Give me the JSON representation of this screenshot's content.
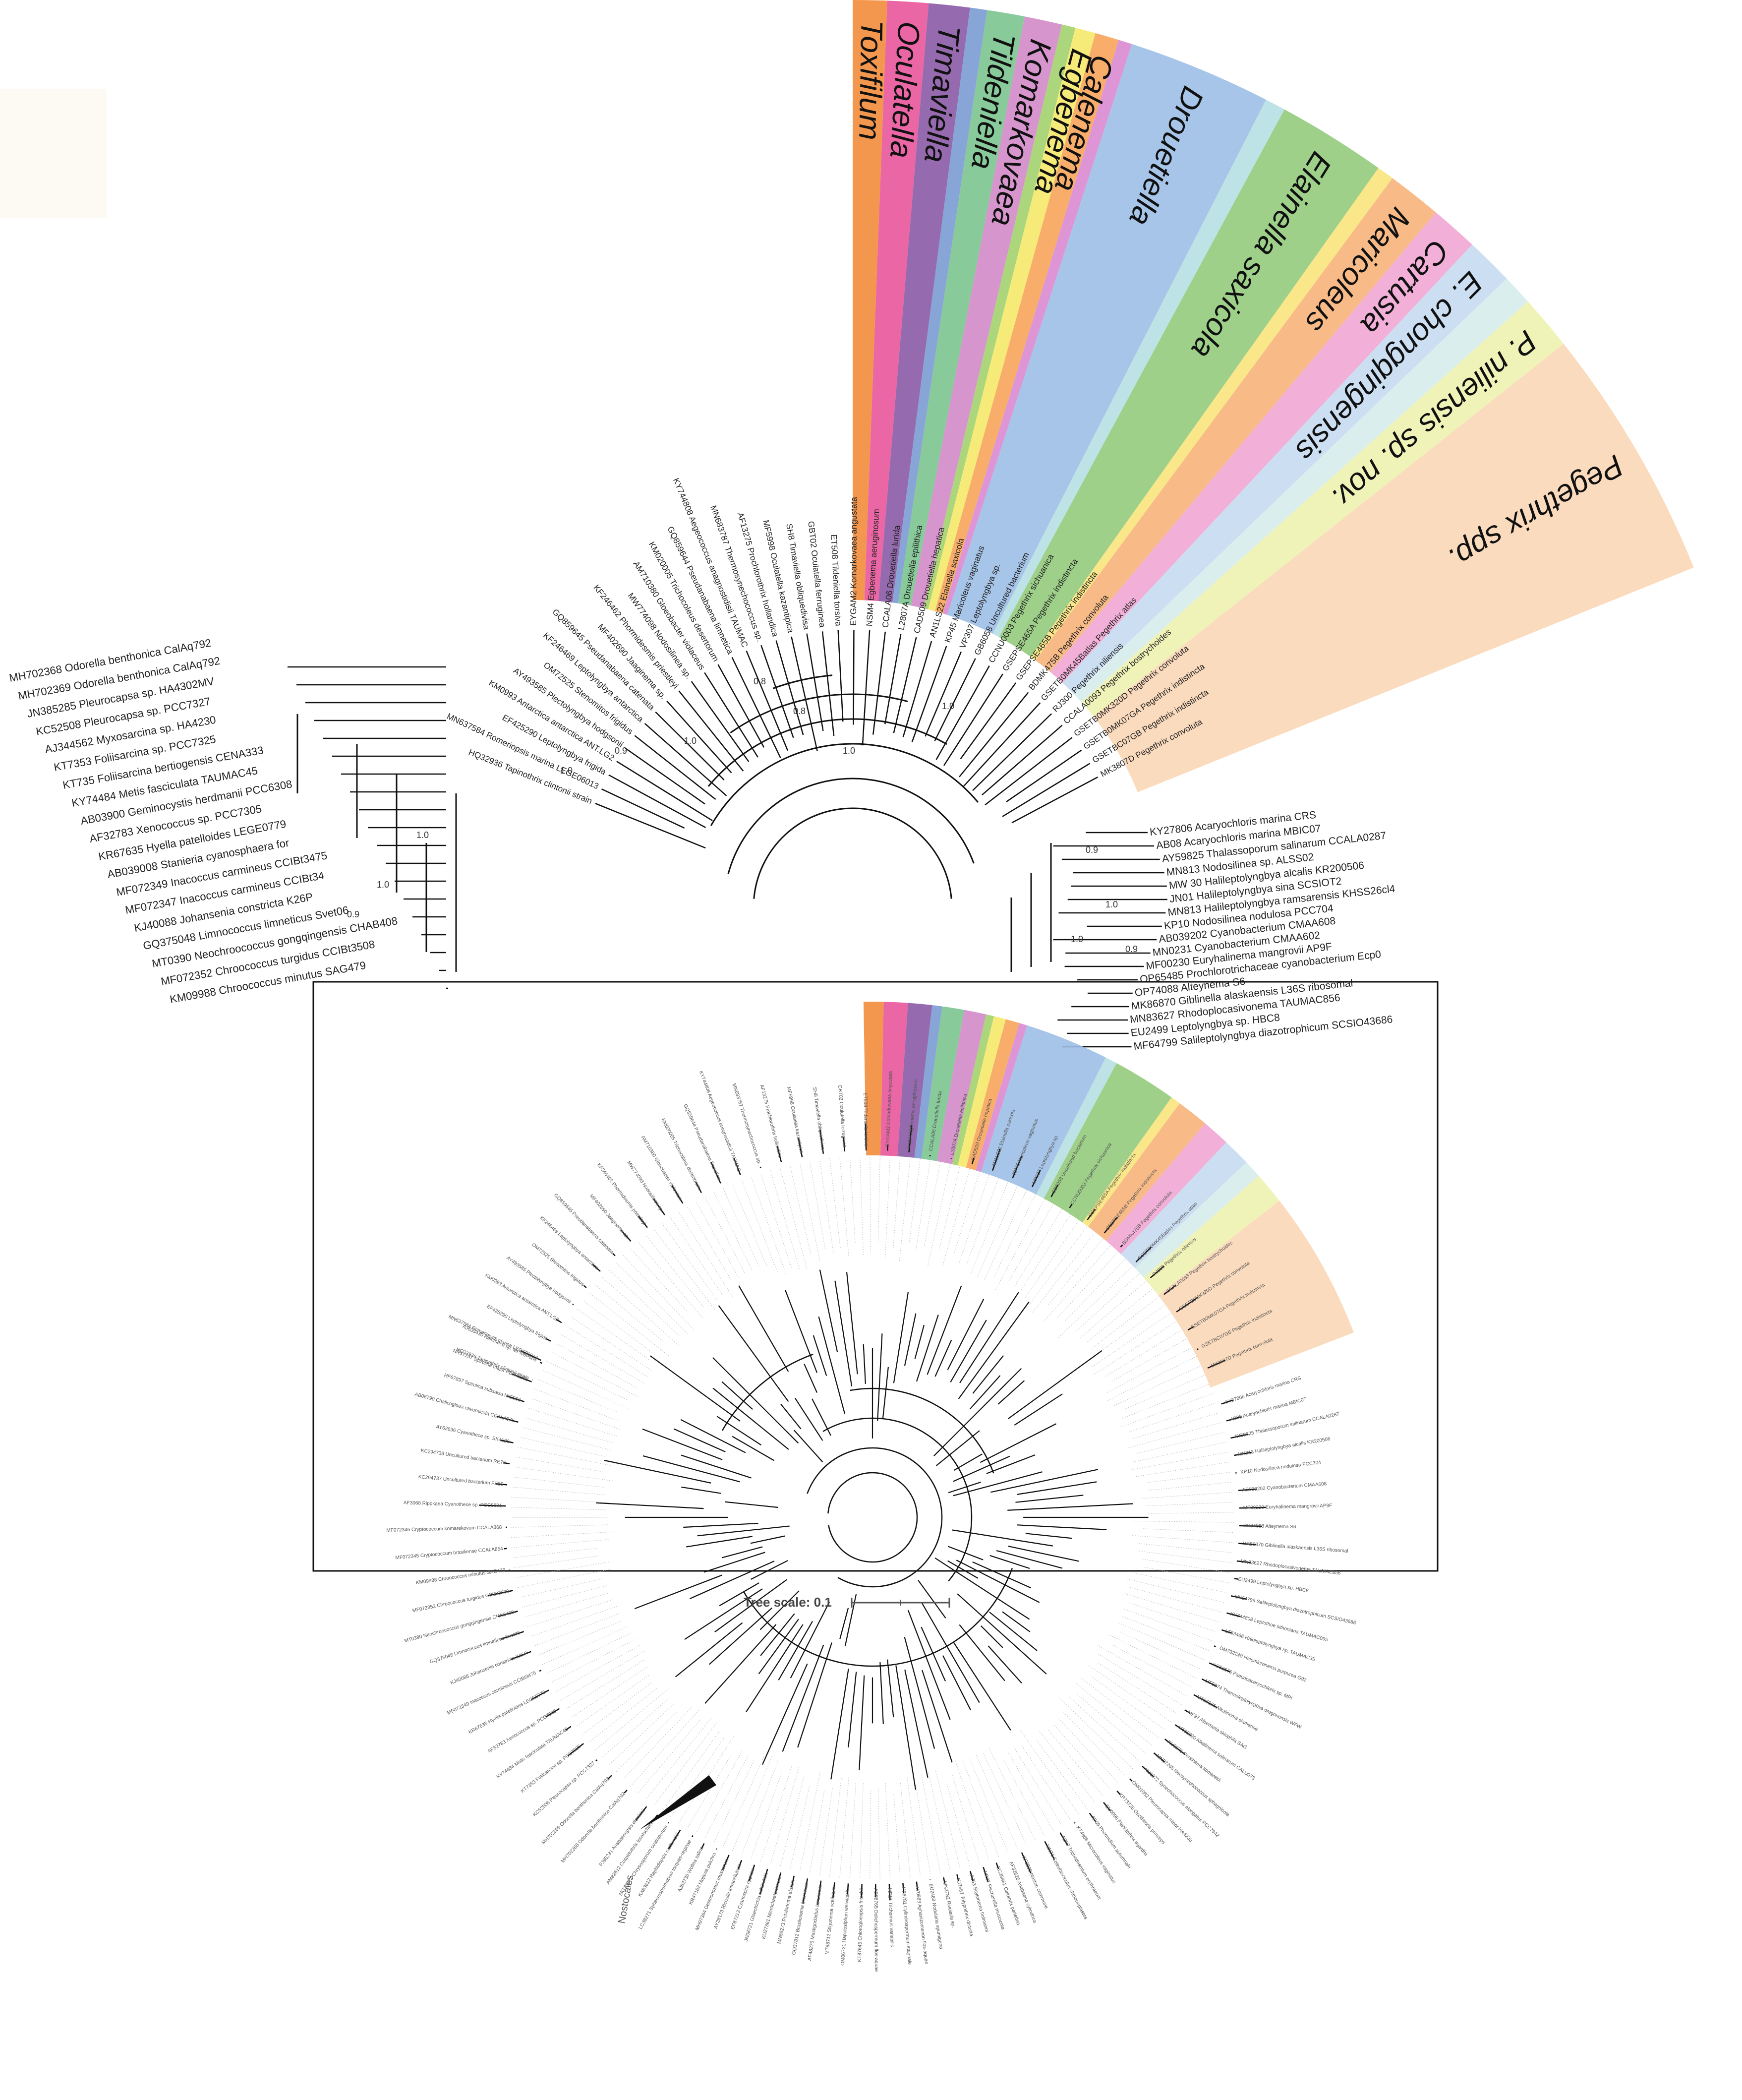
{
  "clades": [
    {
      "name": "Toxifilum",
      "color": "#f28c3c"
    },
    {
      "name": "Oculatella",
      "color": "#e8559a"
    },
    {
      "name": "Timaviella",
      "color": "#8b5aa5"
    },
    {
      "name": "",
      "color": "#7a9bd2"
    },
    {
      "name": "Tildeniella",
      "color": "#7cc48f"
    },
    {
      "name": "Komarkovaea",
      "color": "#d18ac7"
    },
    {
      "name": "",
      "color": "#a3d16e"
    },
    {
      "name": "Egbenema",
      "color": "#f5e96a"
    },
    {
      "name": "Calenema",
      "color": "#f7a55a"
    },
    {
      "name": "",
      "color": "#d98ad1"
    },
    {
      "name": "Drouetiella",
      "color": "#9dbfe6"
    },
    {
      "name": "",
      "color": "#b7e0e3"
    },
    {
      "name": "Elainella saxicola",
      "color": "#93cb7c"
    },
    {
      "name": "",
      "color": "#f8e47c"
    },
    {
      "name": "Maricoleus",
      "color": "#f7b47a"
    },
    {
      "name": "Cartusia",
      "color": "#f1a7d4"
    },
    {
      "name": "E. chongqingensis",
      "color": "#c6dcf1"
    },
    {
      "name": "",
      "color": "#d6ecec"
    },
    {
      "name": "P. niliensis sp. nov.",
      "color": "#eef2b0"
    },
    {
      "name": "Pegethrix spp.",
      "color": "#fbd7b6"
    }
  ],
  "labels": {
    "upper_left": [
      "MH702368 Odorella benthonica CalAq792",
      "MH702369 Odorella benthonica CalAq792",
      "JN385285 Pleurocapsa sp. HA4302MV",
      "KC52508 Pleurocapsa sp. PCC7327",
      "AJ344562 Myxosarcina sp. HA4230",
      "KT7353 Foliisarcina sp. PCC7325",
      "KT735 Foliisarcina bertiogensis CENA333",
      "KY74484 Metis fasciculata TAUMAC45",
      "AB03900 Geminocystis herdmanii PCC6308",
      "AF32783 Xenococcus sp. PCC7305",
      "KR67635 Hyella patelloides LEGE0779",
      "AB039008 Stanieria cyanosphaera for",
      "MF072349 Inacoccus carmineus CCIBt3475",
      "MF072347 Inacoccus carmineus CCIBt34",
      "KJ40088 Johansenia constricta K26P",
      "GQ375048 Limnococcus limneticus Svet06",
      "MT0390 Neochroococcus gongqingensis CHAB408",
      "MF072352 Chroococcus turgidus CCIBt3508",
      "KM09988 Chroococcus minutus SAG479"
    ],
    "upper_right": [
      "KY27806 Acaryochloris marina CRS",
      "AB08 Acaryochloris marina MBIC07",
      "AY59825 Thalassoporum salinarum CCALA0287",
      "MN813 Nodosilinea sp. ALSS02",
      "MW 30 Halileptolyngbya alcalis KR200506",
      "JN01 Halileptolyngbya sina SCSIOT2",
      "MN813 Halileptolyngbya ramsarensis KHSS26cl4",
      "KP10 Nodosilinea nodulosa PCC704",
      "AB039202 Cyanobacterium CMAA608",
      "MN0231 Cyanobacterium CMAA602",
      "MF00230 Euryhalinema mangrovii AP9F",
      "OP65485 Prochlorotrichaceae cyanobacterium Ecp0",
      "OP74088 Alteynema S6",
      "MK86870 Giblinella alaskaensis L36S ribosomal",
      "MN83627 Rhodoplocasivonema TAUMAC856",
      "EU2499 Leptolyngbya sp. HBC8",
      "MF64799 Salileptolyngbya diazotrophicum SCSIO43686"
    ],
    "upper_top": [
      "HQ32936 Tapinothrix clintonii strain",
      "MN637584 Romeriopsis marina LEGE06013",
      "EF425290 Leptolyngbya frigida",
      "KM0993 Antarctica antarctica ANT.LG2",
      "AY493585 Plectolyngbya hodgsonii",
      "OM72525 Stenomitos frigidus",
      "KF246469 Leptolyngbya antarctica",
      "GQ859645 Pseudanabaena catenata",
      "MF402690 Jaaginema sp.",
      "KF246462 Phormidesmis priestleyi",
      "MW774098 Nodosilinea sp.",
      "AM710380 Gloeobacter violaceus",
      "KM020005 Trichocoleus desertorum",
      "GQ859644 Pseudanabaena limnetica",
      "KY744808 Aegeococcus anagnostidisii TAUMAC",
      "MN683787 Thermosynechococcus sp.",
      "AF13275 Prochlorothrix hollandica",
      "MF5998 Oculatella kazantipica",
      "SH8 Timaviella obliquedivisa",
      "GBT02 Oculatella ferruginea",
      "ET508 Tildeniella torsiva",
      "EYGAM2 Komarkovaea angustata",
      "NSM4 Egbenema aeruginosum",
      "CCALA06 Drouetiella lurida",
      "L2807A Drouetiella epilithica",
      "CAD509 Drouetiella hepatica",
      "AN1LS22 Elainella saxicola",
      "KP45 Maricoleus vaginatus",
      "VP307 Leptolyngbya sp.",
      "GB6058 Uncultured bacterium",
      "CCNU0003 Pegethrix sichuanica",
      "GSEPSE465A Pegethrix indistincta",
      "GSEPSE465B Pegethrix indistincta",
      "BDMK475B Pegethrix convoluta",
      "GSETB0MK45Batlas Pegethrix atlas",
      "RJ300 Pegethrix niliensis",
      "CCALA0093 Pegethrix bostrychoides",
      "GSETB0MK320D Pegethrix convoluta",
      "GSETB0MK07GA Pegethrix indistincta",
      "GSETBC07GB Pegethrix indistincta",
      "MK3807D Pegethrix convoluta"
    ],
    "lower_left": [
      "MH702368 Odorella benthonica CalAq792",
      "MH702369 Odorella benthonica CalAq792",
      "KC52508 Pleurocapsa sp. PCC7327",
      "KT7353 Foliisarcina sp. PCC7325",
      "KY74484 Metis fasciculata TAUMAC45",
      "AF32783 Xenococcus sp. PCC7305",
      "KR67635 Hyella patelloides LEGE0779",
      "MF072349 Inacoccus carmineus CCIBt3475",
      "KJ40088 Johansenia constricta K26P",
      "GQ375048 Limnococcus limneticus Svet06",
      "MT0390 Neochroococcus gongqingensis CHAB408",
      "MF072352 Chroococcus turgidus CCIBt3508",
      "KM09988 Chroococcus minutus SAG479",
      "MF072345 Cryptococcum brasiliense CCALA854",
      "MF072346 Cryptococcum komarekovum CCALA868",
      "AF3068 Rippkaea Cyanothece sp. PCC8801",
      "KC294737 Uncultured bacterium FE35",
      "KC294738 Uncultured bacterium RE76",
      "AY62636 Cyanothece sp. SK4126",
      "AB06790 Chalicogloea cavernicola CCALA975",
      "HF67897 Spirulina subsalsa NIES68",
      "NR57237 Spirulina major PBFF2380",
      "AJ635430 Halothece sp. MPI96P605"
    ],
    "lower_right": [
      "KY27806 Acaryochloris marina CRS",
      "AB08 Acaryochloris marina MBIC07",
      "AY59825 Thalassoporum salinarum CCALA0287",
      "MN813 Halileptolyngbya alcalis KR200506",
      "KP10 Nodosilinea nodulosa PCC704",
      "AB039202 Cyanobacterium CMAA608",
      "MF00230 Euryhalinema mangrovii AP9F",
      "OP74088 Alteynema S6",
      "MK86870 Giblinella alaskaensis L36S ribosomal",
      "MN83627 Rhodoplocasivonema TAUMAC856",
      "EU2499 Leptolyngbya sp. HBC8",
      "MF64799 Salileptolyngbya diazotrophicum SCSIO43686",
      "KY744808 Leptothoe sithoniana TAUMAC095",
      "LT63466 Haloleptolyngbya sp. TAUMAC35",
      "OM732240 Halomicronema purpurea G92",
      "KC52676 Pseudoacaryochloris sp. MPI",
      "MF5974 Thermoleptolyngbya oregonensis WFW",
      "MT05086 Alkalinema siamense",
      "MF97 Albertania skiophila SAG",
      "MT05820 Alkalinema salinarum CALU073",
      "KU9871 Persinema komarekii",
      "MN37265 Neosynechococcus sphagnicola",
      "KU6272 Synechococcus elongatus PCC7942",
      "OM01082 Pleurocapsa minor HA4230",
      "KR73726 Oscillatoria princeps",
      "EU0098 Planktothrix agardhii",
      "AF09 Phormidium autumnale",
      "KT4868 Microcoleus vaginatus",
      "AB07 Trichodesmium erythraeum",
      "MN76 Coleofasciculus chthonoplastes"
    ],
    "lower_bottom": [
      "KF2690 Nostoc commune",
      "AF32628 Anabaena cylindrica",
      "KC35862 Calothrix parietina",
      "NR07 Fischerella muscicola",
      "AJ63 Scytonema hofmanni",
      "KJ7687 Tolypothrix distorta",
      "MN3782 Rivularia sp.",
      "EU2489 Nodularia spumigena",
      "KY0983 Aphanizomenon flos-aquae",
      "HF6781 Cylindrospermum stagnale",
      "MF17 Trichormus variabilis",
      "AB08765 Dolichospermum flos-aquae",
      "KT87645 Chlorogloeopsis fritschii",
      "OM06721 Hapalosiphon welwitschii",
      "MT98712 Stigonema ocellatum",
      "AF48276 Mastigocladus laminosus",
      "GQ37812 Brasilonema bromeliae",
      "MN88273 Petalonema alatum",
      "KU27361 Microchaete tenera",
      "JN08721 Gloeotrichia echinulata",
      "EF87213 Cyanospira rippkae",
      "AY28173 Richelia intracellularis",
      "MH97364 Desmonostoc muscorum",
      "KR47162 Mojavia pulchra",
      "AJ82736 Wollea salina",
      "LC38271 Sphaerospermopsis torques-reginae",
      "KX83612 Raphidiopsis raciborskii",
      "MG13871 Chrysosporum ovalisporum",
      "AM82612 Cuspidothrix issatschenkoi",
      "FJ98231 Anabaenopsis elenkinii"
    ]
  },
  "bootstrap": [
    "1.0",
    "1.0",
    "0.9",
    "1.0",
    "0.9",
    "1.0",
    "0.8",
    "1.0",
    "0.9",
    "1.0",
    "1.0",
    "0.9",
    "0.8",
    "1.0"
  ],
  "nostocales_label": "Nostocales",
  "scale": {
    "label": "Tree scale: 0.1"
  }
}
